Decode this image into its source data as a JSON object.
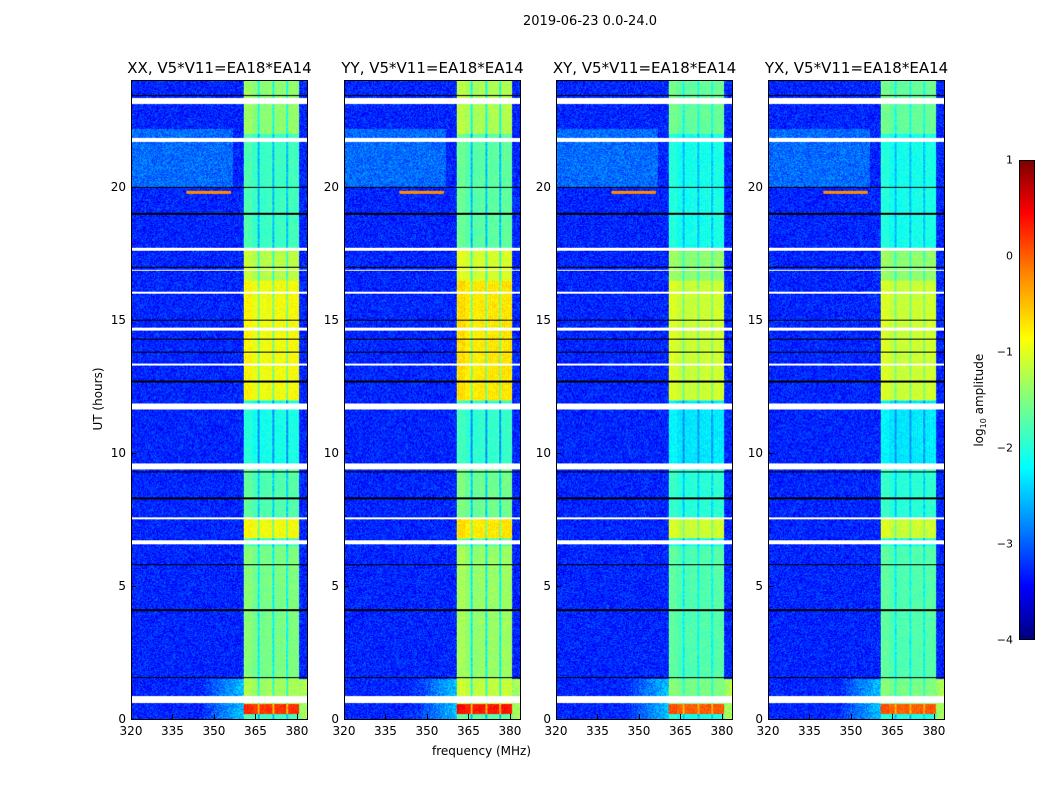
{
  "chart_data": {
    "type": "heatmap",
    "title": "2019-06-23 0.0-24.0",
    "xlabel": "frequency (MHz)",
    "ylabel": "UT (hours)",
    "xlim": [
      320,
      384
    ],
    "ylim": [
      0,
      24
    ],
    "xticks": [
      "320",
      "335",
      "350",
      "365",
      "380"
    ],
    "yticks": [
      "0",
      "5",
      "10",
      "15",
      "20"
    ],
    "panels": [
      {
        "title": "XX, V5*V11=EA18*EA14",
        "pol": "XX",
        "gain": 0.0
      },
      {
        "title": "YY, V5*V11=EA18*EA14",
        "pol": "YY",
        "gain": 0.15
      },
      {
        "title": "XY, V5*V11=EA18*EA14",
        "pol": "XY",
        "gain": -0.2
      },
      {
        "title": "YX, V5*V11=EA18*EA14",
        "pol": "YX",
        "gain": -0.2
      }
    ],
    "colorbar": {
      "label_main": "log",
      "label_sub": "10",
      "label_rest": " amplitude",
      "range": [
        -4,
        1
      ],
      "ticks": [
        "1",
        "0",
        "−1",
        "−2",
        "−3",
        "−4"
      ],
      "tick_values": [
        1,
        0,
        -1,
        -2,
        -3,
        -4
      ],
      "colormap": "jet"
    },
    "background_level": -3.2,
    "bright_channels_mhz": [
      [
        361,
        366
      ],
      [
        366.6,
        371.4
      ],
      [
        372,
        376.4
      ],
      [
        377,
        381
      ]
    ],
    "band_levels_by_hour": [
      {
        "from": 0.2,
        "to": 0.55,
        "value": 0.15
      },
      {
        "from": 0.55,
        "to": 1.5,
        "value": -1.3
      },
      {
        "from": 1.5,
        "to": 6.5,
        "value": -1.5
      },
      {
        "from": 6.8,
        "to": 7.5,
        "value": -0.9
      },
      {
        "from": 7.6,
        "to": 9.4,
        "value": -1.7
      },
      {
        "from": 9.6,
        "to": 12.0,
        "value": -2.0
      },
      {
        "from": 12.0,
        "to": 16.5,
        "value": -0.9
      },
      {
        "from": 16.5,
        "to": 17.6,
        "value": -1.2
      },
      {
        "from": 17.7,
        "to": 22.0,
        "value": -1.8
      },
      {
        "from": 22.0,
        "to": 24.0,
        "value": -1.4
      }
    ],
    "flagged_hours": [
      [
        0.6,
        0.85
      ],
      [
        6.58,
        6.72
      ],
      [
        7.5,
        7.6
      ],
      [
        9.4,
        9.6
      ],
      [
        11.65,
        11.85
      ],
      [
        13.3,
        13.36
      ],
      [
        14.6,
        14.72
      ],
      [
        16.0,
        16.08
      ],
      [
        16.85,
        16.92
      ],
      [
        17.6,
        17.72
      ],
      [
        21.7,
        21.85
      ],
      [
        23.15,
        23.35
      ]
    ],
    "dark_line_hours": [
      1.55,
      4.1,
      5.8,
      8.3,
      9.3,
      12.7,
      13.8,
      14.3,
      15.0,
      17.0,
      19.0,
      20.0,
      23.45
    ]
  }
}
